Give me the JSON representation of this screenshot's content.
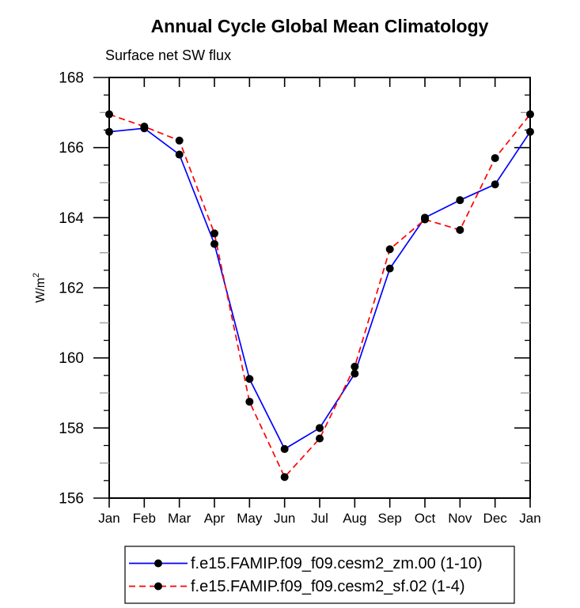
{
  "title": "Annual Cycle Global Mean Climatology",
  "subtitle": "Surface net SW flux",
  "chart_data": {
    "type": "line",
    "title": "Annual Cycle Global Mean Climatology",
    "subtitle": "Surface net SW flux",
    "xlabel": "",
    "ylabel": "W/m",
    "ylabel_exponent": "2",
    "ylim": [
      156,
      168
    ],
    "ytick_step": 2,
    "yminor_step": 0.5,
    "grid": false,
    "legend_position": "bottom",
    "frame_color": "#000000",
    "categories": [
      "Jan",
      "Feb",
      "Mar",
      "Apr",
      "May",
      "Jun",
      "Jul",
      "Aug",
      "Sep",
      "Oct",
      "Nov",
      "Dec",
      "Jan"
    ],
    "series": [
      {
        "name": "f.e15.FAMIP.f09_f09.cesm2_zm.00 (1-10)",
        "line_color": "#0000ff",
        "line_style": "solid",
        "marker": "filled-circle",
        "marker_color": "#000000",
        "values": [
          166.45,
          166.55,
          165.8,
          163.25,
          159.4,
          157.4,
          158.0,
          159.55,
          162.55,
          164.0,
          164.5,
          164.95,
          166.45
        ]
      },
      {
        "name": "f.e15.FAMIP.f09_f09.cesm2_sf.02 (1-4)",
        "line_color": "#ff0000",
        "line_style": "dashed",
        "marker": "filled-circle",
        "marker_color": "#000000",
        "values": [
          166.95,
          166.6,
          166.2,
          163.55,
          158.75,
          156.6,
          157.7,
          159.75,
          163.1,
          163.95,
          163.65,
          165.7,
          166.95
        ]
      }
    ]
  }
}
